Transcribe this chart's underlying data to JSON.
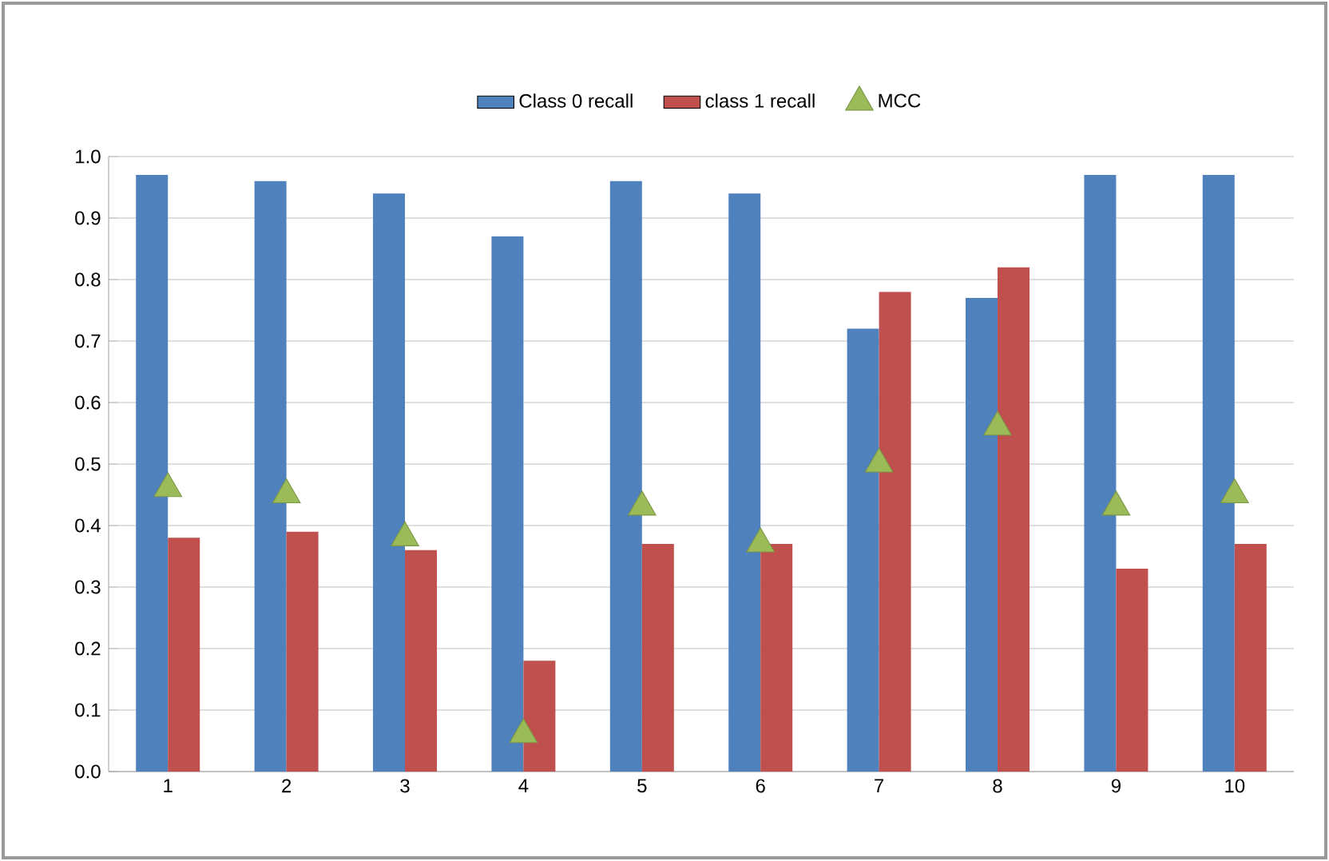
{
  "chart_data": {
    "type": "bar",
    "categories": [
      "1",
      "2",
      "3",
      "4",
      "5",
      "6",
      "7",
      "8",
      "9",
      "10"
    ],
    "series": [
      {
        "name": "Class 0 recall",
        "color": "#4f81bd",
        "values": [
          0.97,
          0.96,
          0.94,
          0.87,
          0.96,
          0.94,
          0.72,
          0.77,
          0.97,
          0.97
        ]
      },
      {
        "name": "class 1 recall",
        "color": "#c0504d",
        "values": [
          0.38,
          0.39,
          0.36,
          0.18,
          0.37,
          0.37,
          0.78,
          0.82,
          0.33,
          0.37
        ]
      },
      {
        "name": "MCC",
        "type": "scatter",
        "marker": "triangle",
        "color": "#9bbb59",
        "x": [
          "1",
          "2",
          "3",
          "4",
          "5",
          "6",
          "7",
          "8",
          "9",
          "10"
        ],
        "values": [
          0.46,
          0.45,
          0.38,
          0.06,
          0.43,
          0.37,
          0.5,
          0.56,
          0.43,
          0.45
        ]
      }
    ],
    "ylim": [
      0,
      1
    ],
    "yticks": [
      {
        "value": 0,
        "label": "0.0"
      },
      {
        "value": 0.1,
        "label": "0.1"
      },
      {
        "value": 0.2,
        "label": "0.2"
      },
      {
        "value": 0.3,
        "label": "0.3"
      },
      {
        "value": 0.4,
        "label": "0.4"
      },
      {
        "value": 0.5,
        "label": "0.5"
      },
      {
        "value": 0.6,
        "label": "0.6"
      },
      {
        "value": 0.7,
        "label": "0.7"
      },
      {
        "value": 0.8,
        "label": "0.8"
      },
      {
        "value": 0.9,
        "label": "0.9"
      },
      {
        "value": 1,
        "label": "1.0"
      }
    ],
    "grid": "y",
    "legend": "top"
  }
}
